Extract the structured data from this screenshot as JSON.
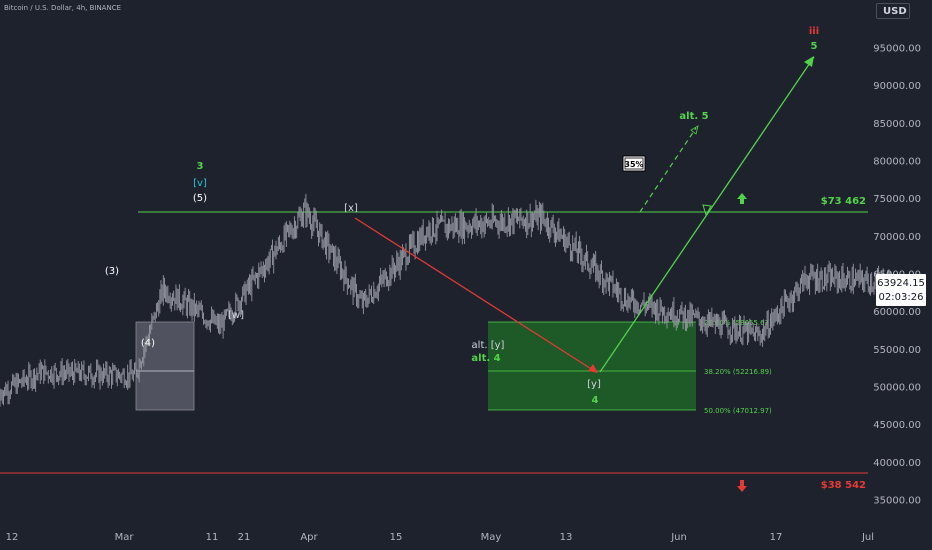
{
  "header": {
    "title": "Bitcoin / U.S. Dollar, 4h, BINANCE",
    "currency": "USD"
  },
  "price_badge": {
    "price": "63924.15",
    "countdown": "02:03:26"
  },
  "colors": {
    "background": "#1e222d",
    "candles": "#9598a1",
    "green_line": "#52d34a",
    "red_line": "#e53935",
    "fib_fill": "#1e5a27",
    "gray_box": "#5d606b",
    "white": "#ffffff",
    "cyan": "#26c6da"
  },
  "chart_data": {
    "type": "line",
    "x_axis_ticks": [
      "12",
      "Mar",
      "11",
      "21",
      "Apr",
      "15",
      "May",
      "13",
      "Jun",
      "17",
      "Jul"
    ],
    "y_axis_ticks": [
      "95000.00",
      "90000.00",
      "85000.00",
      "80000.00",
      "75000.00",
      "70000.00",
      "65000.00",
      "60000.00",
      "55000.00",
      "50000.00",
      "45000.00",
      "40000.00",
      "35000.00"
    ],
    "ylim": [
      31000,
      99000
    ],
    "price_series_checkpoints": {
      "x": [
        "Feb 8",
        "Feb 15",
        "Feb 25",
        "Feb 28",
        "Mar 5",
        "Mar 14",
        "Mar 20",
        "Mar 27",
        "Apr 8",
        "Apr 17",
        "May 1",
        "May 6",
        "May 15"
      ],
      "y": [
        47500,
        52000,
        51500,
        63000,
        58000,
        73500,
        61000,
        71000,
        72500,
        61500,
        56800,
        64500,
        63924
      ]
    },
    "levels": [
      {
        "name": "$73 462",
        "value": 73462,
        "color": "#52d34a"
      },
      {
        "name": "$38 542",
        "value": 38542,
        "color": "#e53935"
      }
    ],
    "fib_zone": [
      {
        "label": "23.60% (58655.63)",
        "value": 58655.63
      },
      {
        "label": "38.20% (52216.89)",
        "value": 52216.89
      },
      {
        "label": "50.00% (47012.97)",
        "value": 47012.97
      }
    ],
    "wave_labels": [
      {
        "text": "3",
        "color": "#52d34a"
      },
      {
        "text": "[v]",
        "color": "#26c6da"
      },
      {
        "text": "(5)",
        "color": "#ffffff"
      },
      {
        "text": "(3)",
        "color": "#ffffff"
      },
      {
        "text": "(4)",
        "color": "#ffffff"
      },
      {
        "text": "[w]",
        "color": "#d1d4dc"
      },
      {
        "text": "[x]",
        "color": "#d1d4dc"
      },
      {
        "text": "alt. [y]",
        "color": "#d1d4dc"
      },
      {
        "text": "alt. 4",
        "color": "#52d34a"
      },
      {
        "text": "[y]",
        "color": "#d1d4dc"
      },
      {
        "text": "4",
        "color": "#52d34a"
      },
      {
        "text": "alt. 5",
        "color": "#52d34a"
      },
      {
        "text": "iii",
        "color": "#e53935"
      },
      {
        "text": "5",
        "color": "#52d34a"
      }
    ],
    "annotations": {
      "probability": "35%"
    },
    "projections": [
      {
        "name": "decline to [y]",
        "color": "#e53935",
        "from": [
          "Apr 8",
          72500
        ],
        "to": [
          "May 17",
          52200
        ]
      },
      {
        "name": "rally to 5",
        "color": "#52d34a",
        "from": [
          "May 17",
          52200
        ],
        "to": [
          "Jun 30",
          94500
        ]
      },
      {
        "name": "alt. 5 path",
        "color": "#52d34a",
        "dashed": true,
        "from": [
          "Jun 6",
          73462
        ],
        "to": [
          "Jun 14",
          84500
        ]
      }
    ]
  }
}
